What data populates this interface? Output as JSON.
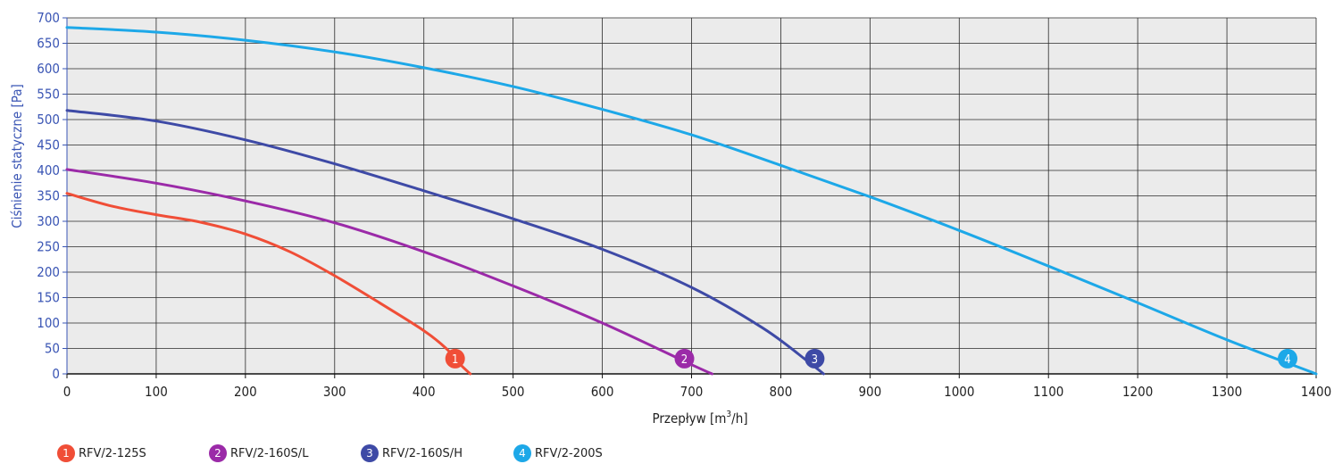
{
  "chart_data": {
    "type": "line",
    "xlabel": "Przepływ [m3/h]",
    "xlabel_main": "Przepływ [m",
    "xlabel_sup": "3",
    "xlabel_tail": "/h]",
    "ylabel": "Ciśnienie statyczne [Pa]",
    "xlim": [
      0,
      1400
    ],
    "ylim": [
      0,
      700
    ],
    "x_ticks": [
      "0",
      "100",
      "200",
      "300",
      "400",
      "500",
      "600",
      "700",
      "800",
      "900",
      "1000",
      "1100",
      "1200",
      "1300",
      "1400"
    ],
    "y_ticks": [
      "0",
      "50",
      "100",
      "150",
      "200",
      "250",
      "300",
      "350",
      "400",
      "450",
      "500",
      "550",
      "600",
      "650",
      "700"
    ],
    "grid": true,
    "legend_position": "bottom-left",
    "series": [
      {
        "name": "RFV/2-125S",
        "marker": "1",
        "color": "#f04e37",
        "points": [
          [
            0,
            355
          ],
          [
            50,
            330
          ],
          [
            100,
            313
          ],
          [
            150,
            298
          ],
          [
            200,
            275
          ],
          [
            250,
            240
          ],
          [
            300,
            193
          ],
          [
            350,
            140
          ],
          [
            400,
            85
          ],
          [
            425,
            50
          ],
          [
            440,
            20
          ],
          [
            452,
            0
          ]
        ],
        "marker_at": [
          435,
          30
        ]
      },
      {
        "name": "RFV/2-160S/L",
        "marker": "2",
        "color": "#9b2aa8",
        "points": [
          [
            0,
            402
          ],
          [
            100,
            375
          ],
          [
            200,
            340
          ],
          [
            300,
            297
          ],
          [
            400,
            240
          ],
          [
            500,
            173
          ],
          [
            600,
            100
          ],
          [
            700,
            18
          ],
          [
            723,
            0
          ]
        ],
        "marker_at": [
          692,
          30
        ]
      },
      {
        "name": "RFV/2-160S/H",
        "marker": "3",
        "color": "#3e4aa6",
        "points": [
          [
            0,
            518
          ],
          [
            100,
            497
          ],
          [
            200,
            460
          ],
          [
            300,
            413
          ],
          [
            400,
            360
          ],
          [
            500,
            305
          ],
          [
            600,
            245
          ],
          [
            700,
            170
          ],
          [
            780,
            90
          ],
          [
            830,
            25
          ],
          [
            848,
            0
          ]
        ],
        "marker_at": [
          838,
          30
        ]
      },
      {
        "name": "RFV/2-200S",
        "marker": "4",
        "color": "#1da8e8",
        "points": [
          [
            0,
            681
          ],
          [
            100,
            672
          ],
          [
            200,
            656
          ],
          [
            300,
            633
          ],
          [
            400,
            602
          ],
          [
            500,
            565
          ],
          [
            600,
            520
          ],
          [
            700,
            470
          ],
          [
            800,
            410
          ],
          [
            900,
            348
          ],
          [
            1000,
            282
          ],
          [
            1100,
            212
          ],
          [
            1200,
            140
          ],
          [
            1300,
            67
          ],
          [
            1400,
            0
          ]
        ],
        "marker_at": [
          1368,
          30
        ]
      }
    ]
  }
}
